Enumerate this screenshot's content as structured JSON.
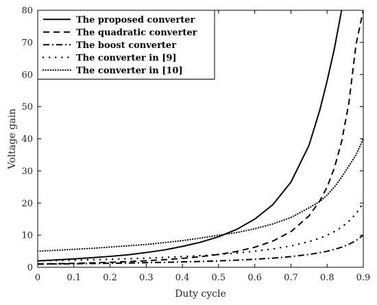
{
  "chart_data": {
    "type": "line",
    "xlabel": "Duty cycle",
    "ylabel": "Voltage gain",
    "xlim": [
      0,
      0.9
    ],
    "ylim": [
      0,
      80
    ],
    "xticks": [
      "0",
      "0.1",
      "0.2",
      "0.3",
      "0.4",
      "0.5",
      "0.6",
      "0.7",
      "0.8",
      "0.9"
    ],
    "yticks": [
      "0",
      "10",
      "20",
      "30",
      "40",
      "50",
      "60",
      "70",
      "80"
    ],
    "grid": false,
    "legend_position": "top-left",
    "x": [
      0,
      0.05,
      0.1,
      0.15,
      0.2,
      0.25,
      0.3,
      0.35,
      0.4,
      0.45,
      0.5,
      0.55,
      0.6,
      0.65,
      0.7,
      0.75,
      0.78,
      0.8,
      0.82,
      0.84,
      0.86,
      0.88,
      0.9
    ],
    "series": [
      {
        "name": "The proposed converter",
        "dash": "solid",
        "x": [
          0,
          0.05,
          0.1,
          0.15,
          0.2,
          0.25,
          0.3,
          0.35,
          0.4,
          0.45,
          0.5,
          0.55,
          0.6,
          0.65,
          0.7,
          0.75,
          0.78,
          0.8,
          0.82,
          0.84
        ],
        "values": [
          2.0,
          2.3,
          2.6,
          3.0,
          3.4,
          3.9,
          4.6,
          5.4,
          6.5,
          7.8,
          9.5,
          11.8,
          15.0,
          19.5,
          26.5,
          38.0,
          49.0,
          58.0,
          68.0,
          80.0
        ]
      },
      {
        "name": "The quadratic converter",
        "dash": "dashed",
        "x": [
          0,
          0.05,
          0.1,
          0.15,
          0.2,
          0.25,
          0.3,
          0.35,
          0.4,
          0.45,
          0.5,
          0.55,
          0.6,
          0.65,
          0.7,
          0.75,
          0.78,
          0.8,
          0.82,
          0.84,
          0.86,
          0.88,
          0.9
        ],
        "values": [
          1.0,
          1.11,
          1.23,
          1.38,
          1.56,
          1.78,
          2.04,
          2.37,
          2.78,
          3.31,
          4.0,
          4.94,
          6.25,
          8.16,
          11.1,
          16.0,
          20.7,
          25.0,
          30.9,
          39.1,
          51.0,
          69.4,
          80.0
        ]
      },
      {
        "name": "The boost converter",
        "dash": "dashdot",
        "values": [
          1.0,
          1.05,
          1.11,
          1.18,
          1.25,
          1.33,
          1.43,
          1.54,
          1.67,
          1.82,
          2.0,
          2.22,
          2.5,
          2.86,
          3.33,
          4.0,
          4.55,
          5.0,
          5.56,
          6.25,
          7.14,
          8.33,
          10.0
        ]
      },
      {
        "name": "The converter in [9]",
        "dash": "dot-sparse",
        "values": [
          2.0,
          2.11,
          2.22,
          2.35,
          2.5,
          2.67,
          2.86,
          3.08,
          3.33,
          3.64,
          4.0,
          4.44,
          5.0,
          5.71,
          6.67,
          8.0,
          9.09,
          10.0,
          11.1,
          12.5,
          14.3,
          16.7,
          20.0
        ]
      },
      {
        "name": "The converter in [10]",
        "dash": "dotted",
        "values": [
          5.0,
          5.3,
          5.6,
          5.9,
          6.3,
          6.7,
          7.1,
          7.7,
          8.3,
          9.1,
          10.0,
          10.8,
          12.0,
          13.5,
          15.5,
          18.5,
          20.5,
          22.5,
          25.0,
          28.0,
          31.5,
          35.0,
          40.0
        ]
      }
    ]
  }
}
